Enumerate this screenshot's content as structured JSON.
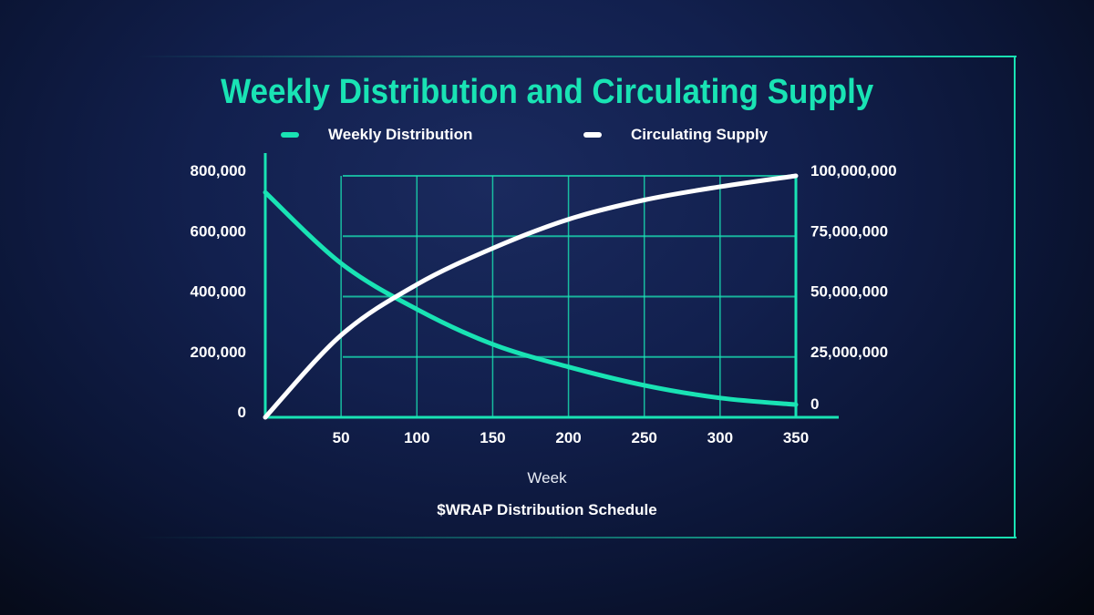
{
  "chart_data": {
    "type": "line",
    "title": "Weekly Distribution and Circulating Supply",
    "xlabel": "Week",
    "caption": "$WRAP Distribution Schedule",
    "x": [
      0,
      50,
      100,
      150,
      200,
      250,
      300,
      350
    ],
    "xlim": [
      0,
      350
    ],
    "x_ticks": [
      "50",
      "100",
      "150",
      "200",
      "250",
      "300",
      "350"
    ],
    "y_left": {
      "lim": [
        0,
        800000
      ],
      "ticks": [
        "0",
        "200,000",
        "400,000",
        "600,000",
        "800,000"
      ]
    },
    "y_right": {
      "lim": [
        0,
        100000000
      ],
      "ticks": [
        "0",
        "25,000,000",
        "50,000,000",
        "75,000,000",
        "100,000,000"
      ]
    },
    "grid": true,
    "legend_position": "top",
    "series": [
      {
        "name": "Weekly Distribution",
        "axis": "left",
        "color": "#19e3b4",
        "values": [
          745000,
          510000,
          358000,
          242000,
          167000,
          106000,
          64000,
          42000
        ]
      },
      {
        "name": "Circulating Supply",
        "axis": "right",
        "color": "#ffffff",
        "values": [
          0,
          34000000,
          55000000,
          70000000,
          82000000,
          90000000,
          95500000,
          100000000
        ]
      }
    ]
  },
  "colors": {
    "accent": "#19e3b4",
    "background": "#0f1c47"
  }
}
